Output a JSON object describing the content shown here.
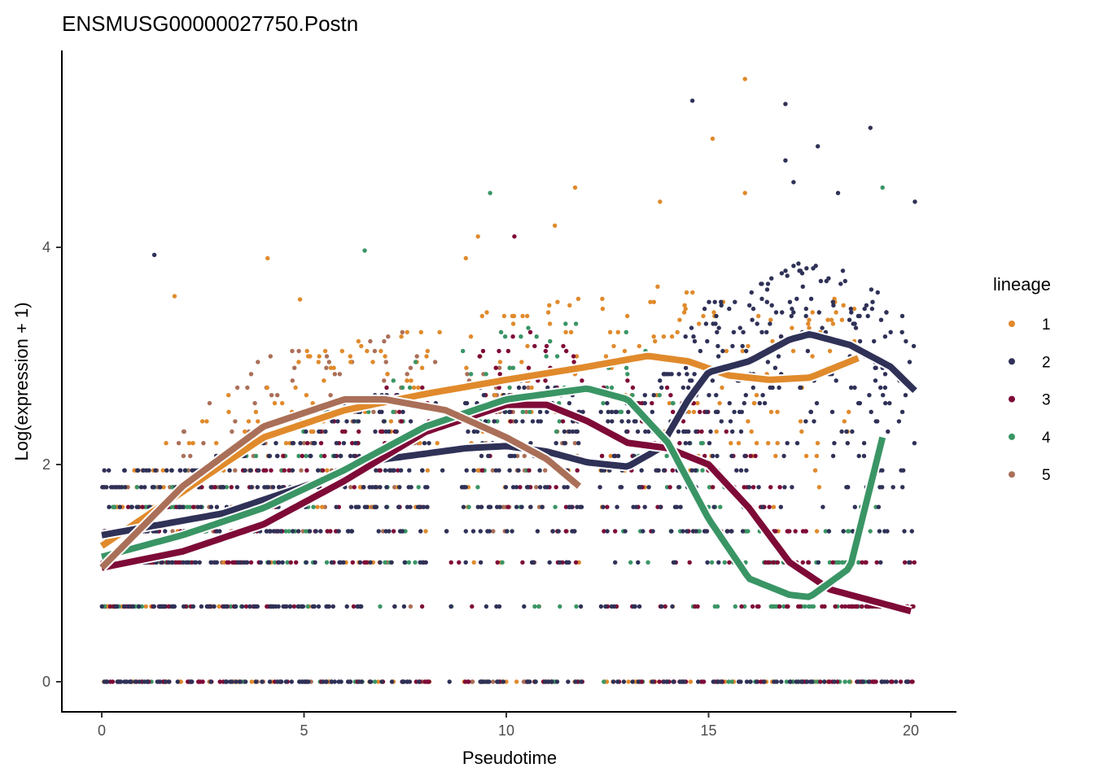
{
  "chart_data": {
    "type": "scatter",
    "title": "ENSMUSG00000027750.Postn",
    "xlabel": "Pseudotime",
    "ylabel": "Log(expression + 1)",
    "xlim": [
      -1,
      21.1
    ],
    "ylim": [
      -0.27,
      5.8
    ],
    "xticks": [
      0,
      5,
      10,
      15,
      20
    ],
    "yticks": [
      0,
      2,
      4
    ],
    "grid": false,
    "legend": {
      "title": "lineage",
      "placement": "right",
      "entries": [
        "1",
        "2",
        "3",
        "4",
        "5"
      ]
    },
    "colors": {
      "1": "#E08A2C",
      "2": "#2F3157",
      "3": "#7E0A37",
      "4": "#3A9565",
      "5": "#AA6F58"
    },
    "scatter_levels": [
      0,
      0.693,
      1.099,
      1.386,
      1.609,
      1.792,
      1.946,
      2.079,
      2.197,
      2.303,
      2.398,
      2.485,
      2.565,
      2.639,
      2.708,
      2.773,
      2.833,
      2.89,
      2.944,
      2.996,
      3.045,
      3.091,
      3.135,
      3.178,
      3.219,
      3.258,
      3.296,
      3.332,
      3.367,
      3.401,
      3.434,
      3.466,
      3.497,
      3.526,
      3.555,
      3.584,
      3.611,
      3.638,
      3.664,
      3.689,
      3.714,
      3.738,
      3.761,
      3.784,
      3.807,
      3.829,
      3.85,
      3.871,
      3.892,
      3.912
    ],
    "scatter_lineages": [
      {
        "lineage": "1",
        "x_range": [
          0,
          18.7
        ],
        "n": 420
      },
      {
        "lineage": "2",
        "x_range": [
          0,
          20.1
        ],
        "n": 1100
      },
      {
        "lineage": "3",
        "x_range": [
          0,
          20.1
        ],
        "n": 520
      },
      {
        "lineage": "4",
        "x_range": [
          0,
          19.3
        ],
        "n": 380
      },
      {
        "lineage": "5",
        "x_range": [
          0,
          11.8
        ],
        "n": 260
      }
    ],
    "outliers": [
      [
        1.3,
        3.93,
        "2"
      ],
      [
        1.8,
        3.55,
        "1"
      ],
      [
        4.1,
        3.9,
        "1"
      ],
      [
        4.9,
        3.52,
        "1"
      ],
      [
        6.5,
        3.97,
        "4"
      ],
      [
        9.6,
        4.5,
        "4"
      ],
      [
        9.3,
        4.1,
        "1"
      ],
      [
        11.2,
        4.2,
        "1"
      ],
      [
        11.7,
        4.55,
        "1"
      ],
      [
        14.6,
        5.35,
        "2"
      ],
      [
        15.1,
        5.0,
        "1"
      ],
      [
        15.9,
        5.55,
        "1"
      ],
      [
        16.9,
        5.32,
        "2"
      ],
      [
        17.7,
        4.93,
        "2"
      ],
      [
        19.0,
        5.1,
        "2"
      ],
      [
        16.9,
        4.8,
        "2"
      ],
      [
        15.9,
        4.5,
        "1"
      ],
      [
        19.3,
        4.55,
        "4"
      ],
      [
        20.1,
        4.42,
        "2"
      ],
      [
        13.8,
        4.42,
        "1"
      ],
      [
        18.2,
        4.5,
        "2"
      ],
      [
        17.1,
        4.6,
        "2"
      ],
      [
        10.2,
        4.1,
        "3"
      ],
      [
        9.0,
        3.9,
        "1"
      ]
    ],
    "smooth_series": [
      {
        "name": "1",
        "x": [
          0,
          2,
          4,
          6,
          8,
          10,
          12,
          13.5,
          14.5,
          15.5,
          16.5,
          17.5,
          18.7
        ],
        "y": [
          1.25,
          1.75,
          2.25,
          2.5,
          2.65,
          2.78,
          2.9,
          3.0,
          2.95,
          2.82,
          2.78,
          2.8,
          2.98
        ]
      },
      {
        "name": "2",
        "x": [
          0,
          3,
          5,
          7,
          9,
          10,
          11,
          12,
          13,
          13.8,
          14.5,
          15,
          16,
          17,
          17.5,
          18.5,
          19.5,
          20.1
        ],
        "y": [
          1.35,
          1.55,
          1.8,
          2.05,
          2.15,
          2.17,
          2.12,
          2.02,
          1.98,
          2.15,
          2.6,
          2.85,
          2.95,
          3.15,
          3.2,
          3.1,
          2.9,
          2.68
        ]
      },
      {
        "name": "3",
        "x": [
          0,
          2,
          4,
          6,
          8,
          10,
          11,
          12,
          13,
          14,
          15,
          16,
          17,
          18,
          19,
          20
        ],
        "y": [
          1.05,
          1.2,
          1.45,
          1.85,
          2.3,
          2.55,
          2.55,
          2.4,
          2.2,
          2.15,
          2.0,
          1.6,
          1.1,
          0.85,
          0.75,
          0.65
        ]
      },
      {
        "name": "4",
        "x": [
          0,
          2,
          4,
          6,
          8,
          10,
          12,
          13,
          14,
          15,
          16,
          17,
          17.5,
          18.5,
          19.3
        ],
        "y": [
          1.15,
          1.35,
          1.6,
          1.95,
          2.35,
          2.6,
          2.7,
          2.6,
          2.2,
          1.5,
          0.95,
          0.8,
          0.78,
          1.05,
          2.25
        ]
      },
      {
        "name": "5",
        "x": [
          0,
          2,
          4,
          6,
          7,
          8.5,
          10,
          11,
          11.8
        ],
        "y": [
          1.05,
          1.8,
          2.35,
          2.6,
          2.6,
          2.5,
          2.25,
          2.05,
          1.8
        ]
      }
    ]
  }
}
